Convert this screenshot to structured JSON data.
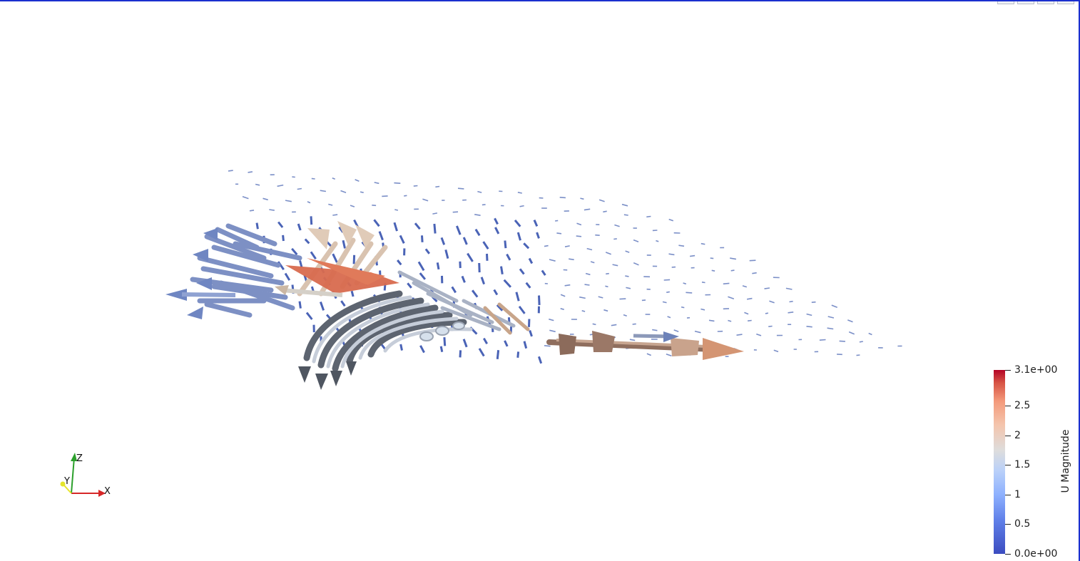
{
  "app": {
    "view": "3D Render View",
    "render_area": "glyph-vector-field"
  },
  "colorbar": {
    "title": "U Magnitude",
    "colormap": "Cool to Warm",
    "range": [
      0.0,
      3.1
    ],
    "labels": [
      "3.1e+00",
      "2.5",
      "2",
      "1.5",
      "1",
      "0.5",
      "0.0e+00"
    ],
    "label_values": [
      3.1,
      2.5,
      2.0,
      1.5,
      1.0,
      0.5,
      0.0
    ],
    "colors": {
      "low": "#3b4cc0",
      "mid": "#dddddd",
      "high": "#b40426"
    }
  },
  "axes": {
    "x_label": "X",
    "y_label": "Y",
    "z_label": "Z",
    "x_color": "#d62728",
    "y_color": "#e5e52b",
    "z_color": "#2ca02c"
  },
  "field": {
    "glyph_type": "arrow",
    "arrow_color_large": "#c98a6a",
    "arrow_color_mid": "#a9b3c6",
    "arrow_color_small": "#4a63b6"
  },
  "frame": {
    "border_color": "#1a2fcf"
  }
}
